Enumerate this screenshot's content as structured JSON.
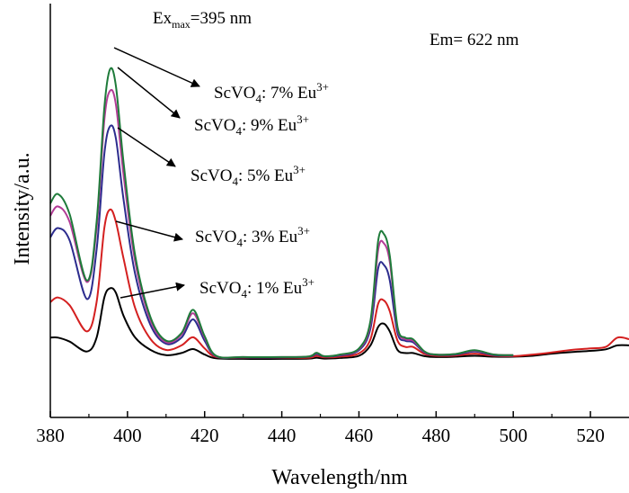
{
  "chart_data": {
    "type": "line",
    "xlabel": "Wavelength/nm",
    "ylabel": "Intensity/a.u.",
    "xlim": [
      380,
      530
    ],
    "ylim": [
      0,
      100
    ],
    "xticks": [
      "380",
      "400",
      "420",
      "440",
      "460",
      "480",
      "500",
      "520"
    ],
    "y_ticks_shown": false,
    "grid": false,
    "annotations": {
      "ex_main": "Ex",
      "ex_sub": "max",
      "ex_rest": "=395 nm",
      "em": "Em= 622 nm"
    },
    "series": [
      {
        "name": "ScVO4: 7% Eu3+",
        "label": {
          "pre": "ScVO",
          "sub": "4",
          "mid": ": 7% Eu",
          "sup": "3+"
        },
        "color": "#1e7b3a",
        "x": [
          380,
          382,
          385,
          389.5,
          392,
          394,
          395.5,
          397,
          399,
          402,
          406,
          410,
          414,
          417,
          420,
          423,
          430,
          440,
          447,
          449,
          451,
          455,
          460,
          463,
          465,
          466.5,
          468,
          470,
          472,
          474,
          477,
          480,
          485,
          490,
          495,
          500
        ],
        "y": [
          51,
          54,
          47.5,
          26,
          45,
          82,
          94.5,
          89,
          64,
          34,
          14,
          6.5,
          9,
          16.5,
          8,
          1.6,
          1.2,
          1.2,
          1.4,
          2.6,
          1.5,
          2,
          4,
          13,
          39,
          41,
          34,
          11,
          7.5,
          7,
          3,
          2,
          2.2,
          3.4,
          2,
          1.8
        ]
      },
      {
        "name": "ScVO4: 9% Eu3+",
        "label": {
          "pre": "ScVO",
          "sub": "4",
          "mid": ": 9% Eu",
          "sup": "3+"
        },
        "color": "#b23c96",
        "x": [
          380,
          382,
          385,
          389.5,
          392,
          394,
          395.5,
          397,
          399,
          402,
          406,
          410,
          414,
          417,
          420,
          423,
          430,
          440,
          447,
          449,
          451,
          455,
          460,
          463,
          465,
          466.5,
          468,
          470,
          472,
          474,
          477,
          480,
          485,
          490,
          495,
          500
        ],
        "y": [
          47,
          50,
          45,
          25.5,
          43,
          78,
          87.5,
          83,
          60,
          32,
          13,
          6,
          8.5,
          15.4,
          7.5,
          1.5,
          1.2,
          1.2,
          1.4,
          2.5,
          1.5,
          1.9,
          3.8,
          12,
          36,
          38,
          32,
          10.5,
          7,
          6.5,
          2.9,
          2,
          2.2,
          3.3,
          2,
          1.8
        ]
      },
      {
        "name": "ScVO4: 5% Eu3+",
        "label": {
          "pre": "ScVO",
          "sub": "4",
          "mid": ": 5% Eu",
          "sup": "3+"
        },
        "color": "#2c2c8e",
        "x": [
          380,
          382,
          385,
          389.5,
          392,
          394,
          395.5,
          397,
          399,
          402,
          406,
          410,
          414,
          417,
          420,
          423,
          430,
          440,
          447,
          449,
          451,
          455,
          460,
          463,
          465,
          466.5,
          468,
          470,
          472,
          474,
          477,
          480,
          485,
          490,
          495,
          500
        ],
        "y": [
          40,
          43,
          39,
          20,
          36,
          67,
          76,
          72,
          52,
          28,
          11.5,
          5.5,
          7.5,
          13.4,
          6.5,
          1.4,
          1.1,
          1.1,
          1.3,
          2.2,
          1.4,
          1.7,
          3.4,
          10.5,
          30,
          31,
          26,
          9,
          6.5,
          6,
          2.7,
          1.9,
          2,
          3,
          1.8,
          1.7
        ]
      },
      {
        "name": "ScVO4: 3% Eu3+",
        "label": {
          "pre": "ScVO",
          "sub": "4",
          "mid": ": 3% Eu",
          "sup": "3+"
        },
        "color": "#d42020",
        "x": [
          380,
          382,
          385,
          389.5,
          392,
          394,
          395.5,
          397,
          399,
          402,
          406,
          410,
          414,
          417,
          420,
          423,
          430,
          440,
          447,
          449,
          451,
          455,
          460,
          463,
          465,
          466.5,
          468,
          470,
          472,
          474,
          477,
          480,
          485,
          490,
          495,
          500,
          505,
          510,
          515,
          520,
          524,
          527,
          530
        ],
        "y": [
          19,
          20.5,
          18,
          9.5,
          19,
          43,
          49,
          45,
          33,
          17,
          7,
          3.5,
          5,
          7.6,
          4,
          1.2,
          1,
          1,
          1,
          1.6,
          1.1,
          1.3,
          2.4,
          7,
          18.5,
          19.5,
          16,
          6.5,
          4.5,
          4.5,
          2.2,
          1.6,
          1.7,
          2.3,
          1.6,
          1.5,
          2,
          2.7,
          3.5,
          4,
          4.5,
          7.5,
          7
        ]
      },
      {
        "name": "ScVO4: 1% Eu3+",
        "label": {
          "pre": "ScVO",
          "sub": "4",
          "mid": ": 1% Eu",
          "sup": "3+"
        },
        "color": "#000000",
        "x": [
          380,
          382,
          385,
          389.5,
          392,
          394,
          395.5,
          397,
          399,
          402,
          406,
          410,
          414,
          417,
          420,
          423,
          430,
          440,
          447,
          449,
          451,
          455,
          460,
          463,
          465,
          466.5,
          468,
          470,
          472,
          474,
          477,
          480,
          485,
          490,
          495,
          500,
          505,
          510,
          515,
          520,
          524,
          527,
          530
        ],
        "y": [
          7.5,
          7.5,
          6.2,
          3,
          7.5,
          20.5,
          23.5,
          22,
          14.5,
          7.5,
          3.5,
          1.8,
          2.5,
          3.8,
          2,
          0.8,
          0.6,
          0.6,
          0.7,
          1,
          0.7,
          0.9,
          1.6,
          5,
          11,
          12,
          9.5,
          3.5,
          2.5,
          2.5,
          1.5,
          1.2,
          1.3,
          1.6,
          1.3,
          1.3,
          1.6,
          2.3,
          2.8,
          3.2,
          3.7,
          5,
          5
        ]
      }
    ]
  }
}
